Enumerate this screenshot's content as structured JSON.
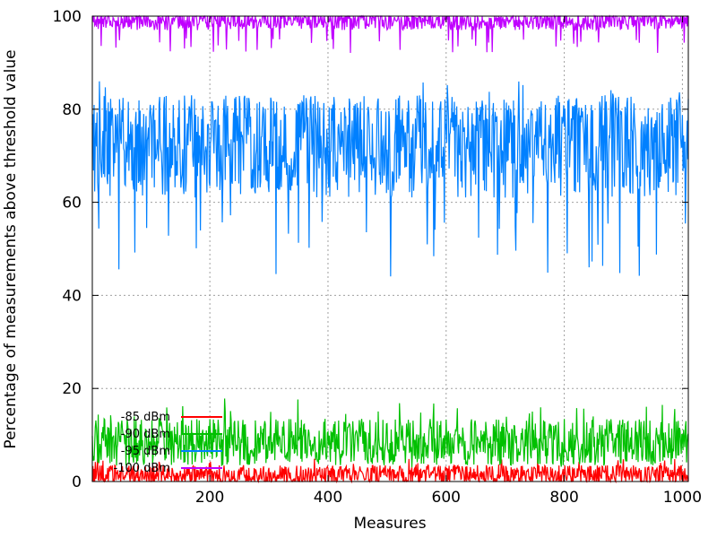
{
  "chart_data": {
    "type": "line",
    "title": "",
    "xlabel": "Measures",
    "ylabel": "Percentage of measurements above threshold value",
    "xlim": [
      1,
      1010
    ],
    "ylim": [
      0,
      100
    ],
    "x_ticks": [
      200,
      400,
      600,
      800,
      1000
    ],
    "y_ticks": [
      0,
      20,
      40,
      60,
      80,
      100
    ],
    "grid": true,
    "legend_position": "bottom-left",
    "x_points": 1010,
    "series": [
      {
        "name": "-85 dBm",
        "color": "#ff0000",
        "mean": 1.5,
        "min": 0,
        "max": 5,
        "typical_range": [
          0,
          4
        ]
      },
      {
        "name": "-90 dBm",
        "color": "#00c000",
        "mean": 8.5,
        "min": 3,
        "max": 18,
        "typical_range": [
          4,
          14
        ]
      },
      {
        "name": "-95 dBm",
        "color": "#0080ff",
        "mean": 72,
        "min": 44,
        "max": 86,
        "typical_range": [
          60,
          82
        ]
      },
      {
        "name": "-100 dBm",
        "color": "#c000ff",
        "mean": 99,
        "min": 92,
        "max": 100,
        "typical_range": [
          96,
          100
        ]
      }
    ]
  }
}
